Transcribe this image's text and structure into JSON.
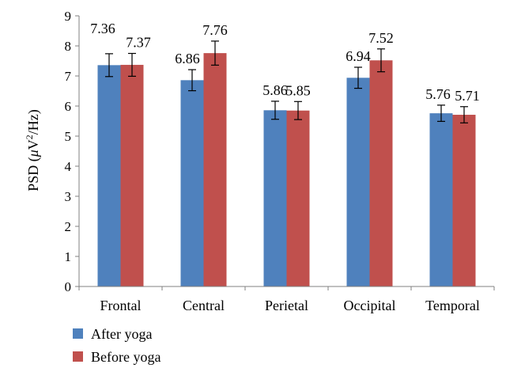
{
  "chart_data": {
    "type": "bar",
    "title": "",
    "xlabel": "",
    "ylabel": "PSD (μV²/Hz)",
    "ylim": [
      0,
      9
    ],
    "yticks": [
      0,
      1,
      2,
      3,
      4,
      5,
      6,
      7,
      8,
      9
    ],
    "grid": false,
    "legend_position": "bottom-left",
    "categories": [
      "Frontal",
      "Central",
      "Perietal",
      "Occipital",
      "Temporal"
    ],
    "series": [
      {
        "name": "After yoga",
        "color": "#4F81BD",
        "values": [
          7.36,
          6.86,
          5.86,
          6.94,
          5.76
        ],
        "labels": [
          "7.36",
          "6.86",
          "5.86",
          "6.94",
          "5.76"
        ],
        "error": [
          0.38,
          0.35,
          0.3,
          0.35,
          0.27
        ]
      },
      {
        "name": "Before yoga",
        "color": "#C0504D",
        "values": [
          7.37,
          7.76,
          5.85,
          7.52,
          5.71
        ],
        "labels": [
          "7.37",
          "7.76",
          "5.85",
          "7.52",
          "5.71"
        ],
        "error": [
          0.38,
          0.4,
          0.3,
          0.38,
          0.27
        ]
      }
    ]
  }
}
